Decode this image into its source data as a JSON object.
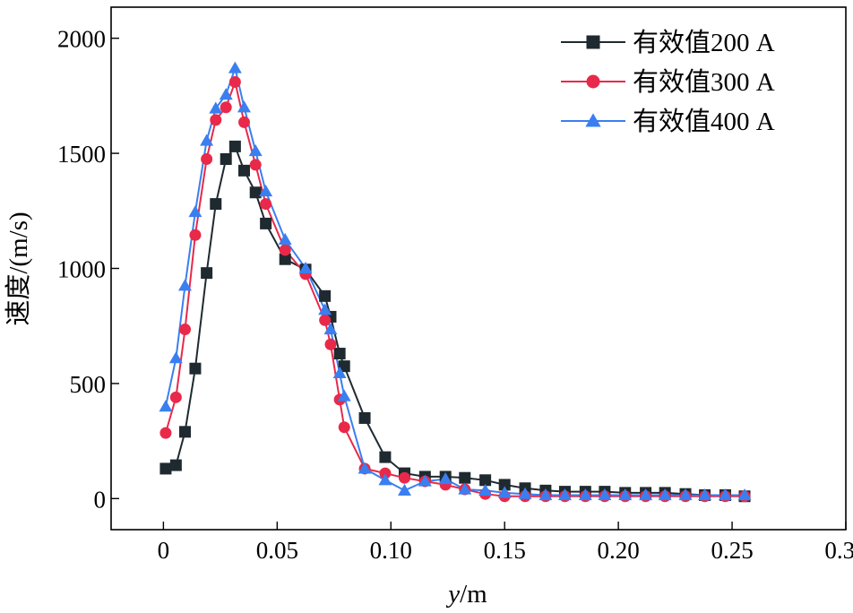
{
  "chart_data": {
    "type": "line",
    "xlabel_var": "y",
    "xlabel_unit": "/m",
    "ylabel": "速度/(m/s)",
    "xlim": [
      -0.023,
      0.3
    ],
    "ylim": [
      -135,
      2135
    ],
    "xticks": [
      0,
      0.05,
      0.1,
      0.15,
      0.2,
      0.25,
      0.3
    ],
    "xtick_labels": [
      "0",
      "0.05",
      "0.10",
      "0.15",
      "0.20",
      "0.25",
      "0.30"
    ],
    "yticks": [
      0,
      500,
      1000,
      1500,
      2000
    ],
    "ytick_labels": [
      "0",
      "500",
      "1000",
      "1500",
      "2000"
    ],
    "grid": false,
    "legend_position": "top-right",
    "series": [
      {
        "name": "有效值200 A",
        "color": "#1f2a30",
        "marker": "square",
        "points": [
          [
            0.001,
            130
          ],
          [
            0.0055,
            145
          ],
          [
            0.0095,
            290
          ],
          [
            0.014,
            565
          ],
          [
            0.019,
            980
          ],
          [
            0.023,
            1280
          ],
          [
            0.0275,
            1475
          ],
          [
            0.0315,
            1530
          ],
          [
            0.0355,
            1425
          ],
          [
            0.0405,
            1330
          ],
          [
            0.045,
            1195
          ],
          [
            0.0535,
            1040
          ],
          [
            0.0625,
            995
          ],
          [
            0.071,
            880
          ],
          [
            0.0735,
            790
          ],
          [
            0.0775,
            630
          ],
          [
            0.0795,
            575
          ],
          [
            0.0885,
            350
          ],
          [
            0.0975,
            180
          ],
          [
            0.106,
            110
          ],
          [
            0.115,
            95
          ],
          [
            0.124,
            95
          ],
          [
            0.1325,
            90
          ],
          [
            0.1415,
            80
          ],
          [
            0.15,
            60
          ],
          [
            0.159,
            45
          ],
          [
            0.168,
            35
          ],
          [
            0.1765,
            30
          ],
          [
            0.1855,
            30
          ],
          [
            0.194,
            30
          ],
          [
            0.203,
            25
          ],
          [
            0.212,
            25
          ],
          [
            0.2205,
            25
          ],
          [
            0.2295,
            20
          ],
          [
            0.238,
            15
          ],
          [
            0.247,
            15
          ],
          [
            0.2555,
            10
          ]
        ]
      },
      {
        "name": "有效值300 A",
        "color": "#e8294a",
        "marker": "circle",
        "points": [
          [
            0.001,
            285
          ],
          [
            0.0055,
            440
          ],
          [
            0.0095,
            735
          ],
          [
            0.014,
            1145
          ],
          [
            0.019,
            1475
          ],
          [
            0.023,
            1645
          ],
          [
            0.0275,
            1700
          ],
          [
            0.0315,
            1810
          ],
          [
            0.0355,
            1635
          ],
          [
            0.0405,
            1450
          ],
          [
            0.045,
            1280
          ],
          [
            0.0535,
            1080
          ],
          [
            0.0625,
            975
          ],
          [
            0.071,
            775
          ],
          [
            0.0735,
            670
          ],
          [
            0.0775,
            430
          ],
          [
            0.0795,
            310
          ],
          [
            0.0885,
            130
          ],
          [
            0.0975,
            110
          ],
          [
            0.106,
            90
          ],
          [
            0.115,
            75
          ],
          [
            0.124,
            60
          ],
          [
            0.1325,
            40
          ],
          [
            0.1415,
            20
          ],
          [
            0.15,
            10
          ],
          [
            0.159,
            10
          ],
          [
            0.168,
            10
          ],
          [
            0.1765,
            10
          ],
          [
            0.1855,
            10
          ],
          [
            0.194,
            10
          ],
          [
            0.203,
            10
          ],
          [
            0.212,
            10
          ],
          [
            0.2205,
            10
          ],
          [
            0.2295,
            10
          ],
          [
            0.238,
            10
          ],
          [
            0.247,
            10
          ],
          [
            0.2555,
            10
          ]
        ]
      },
      {
        "name": "有效值400 A",
        "color": "#3a7ff0",
        "marker": "triangle",
        "points": [
          [
            0.001,
            400
          ],
          [
            0.0055,
            610
          ],
          [
            0.0095,
            925
          ],
          [
            0.014,
            1245
          ],
          [
            0.019,
            1555
          ],
          [
            0.023,
            1695
          ],
          [
            0.0275,
            1755
          ],
          [
            0.0315,
            1870
          ],
          [
            0.0355,
            1700
          ],
          [
            0.0405,
            1510
          ],
          [
            0.045,
            1335
          ],
          [
            0.0535,
            1125
          ],
          [
            0.0625,
            1000
          ],
          [
            0.071,
            820
          ],
          [
            0.0735,
            735
          ],
          [
            0.0775,
            545
          ],
          [
            0.0795,
            445
          ],
          [
            0.0885,
            130
          ],
          [
            0.0975,
            80
          ],
          [
            0.106,
            35
          ],
          [
            0.115,
            75
          ],
          [
            0.124,
            85
          ],
          [
            0.1325,
            40
          ],
          [
            0.1415,
            35
          ],
          [
            0.15,
            25
          ],
          [
            0.159,
            20
          ],
          [
            0.168,
            15
          ],
          [
            0.1765,
            15
          ],
          [
            0.1855,
            15
          ],
          [
            0.194,
            15
          ],
          [
            0.203,
            15
          ],
          [
            0.212,
            15
          ],
          [
            0.2205,
            15
          ],
          [
            0.2295,
            15
          ],
          [
            0.238,
            15
          ],
          [
            0.247,
            15
          ],
          [
            0.2555,
            15
          ]
        ]
      }
    ]
  }
}
